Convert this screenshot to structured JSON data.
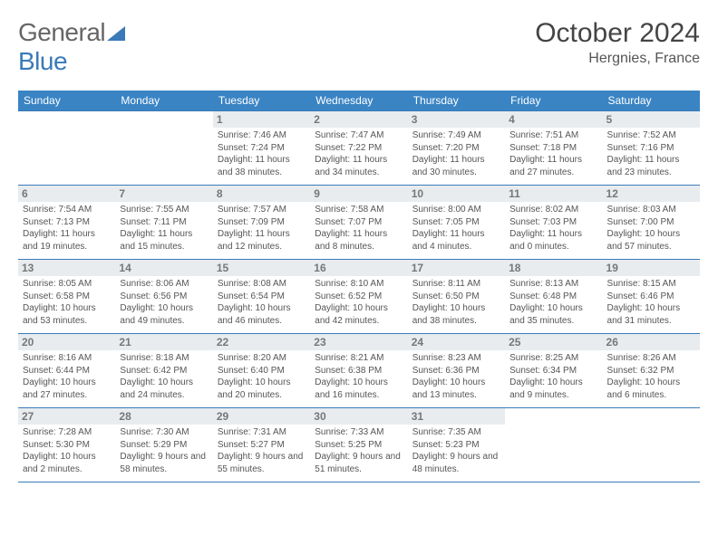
{
  "logo": {
    "textGray": "General",
    "textBlue": "Blue"
  },
  "title": "October 2024",
  "location": "Hergnies, France",
  "colors": {
    "headerBg": "#3a84c4",
    "border": "#3a7ab8",
    "dayBg": "#e8ecef"
  },
  "weekdays": [
    "Sunday",
    "Monday",
    "Tuesday",
    "Wednesday",
    "Thursday",
    "Friday",
    "Saturday"
  ],
  "startOffset": 2,
  "days": [
    {
      "n": 1,
      "sr": "7:46 AM",
      "ss": "7:24 PM",
      "dl": "11 hours and 38 minutes."
    },
    {
      "n": 2,
      "sr": "7:47 AM",
      "ss": "7:22 PM",
      "dl": "11 hours and 34 minutes."
    },
    {
      "n": 3,
      "sr": "7:49 AM",
      "ss": "7:20 PM",
      "dl": "11 hours and 30 minutes."
    },
    {
      "n": 4,
      "sr": "7:51 AM",
      "ss": "7:18 PM",
      "dl": "11 hours and 27 minutes."
    },
    {
      "n": 5,
      "sr": "7:52 AM",
      "ss": "7:16 PM",
      "dl": "11 hours and 23 minutes."
    },
    {
      "n": 6,
      "sr": "7:54 AM",
      "ss": "7:13 PM",
      "dl": "11 hours and 19 minutes."
    },
    {
      "n": 7,
      "sr": "7:55 AM",
      "ss": "7:11 PM",
      "dl": "11 hours and 15 minutes."
    },
    {
      "n": 8,
      "sr": "7:57 AM",
      "ss": "7:09 PM",
      "dl": "11 hours and 12 minutes."
    },
    {
      "n": 9,
      "sr": "7:58 AM",
      "ss": "7:07 PM",
      "dl": "11 hours and 8 minutes."
    },
    {
      "n": 10,
      "sr": "8:00 AM",
      "ss": "7:05 PM",
      "dl": "11 hours and 4 minutes."
    },
    {
      "n": 11,
      "sr": "8:02 AM",
      "ss": "7:03 PM",
      "dl": "11 hours and 0 minutes."
    },
    {
      "n": 12,
      "sr": "8:03 AM",
      "ss": "7:00 PM",
      "dl": "10 hours and 57 minutes."
    },
    {
      "n": 13,
      "sr": "8:05 AM",
      "ss": "6:58 PM",
      "dl": "10 hours and 53 minutes."
    },
    {
      "n": 14,
      "sr": "8:06 AM",
      "ss": "6:56 PM",
      "dl": "10 hours and 49 minutes."
    },
    {
      "n": 15,
      "sr": "8:08 AM",
      "ss": "6:54 PM",
      "dl": "10 hours and 46 minutes."
    },
    {
      "n": 16,
      "sr": "8:10 AM",
      "ss": "6:52 PM",
      "dl": "10 hours and 42 minutes."
    },
    {
      "n": 17,
      "sr": "8:11 AM",
      "ss": "6:50 PM",
      "dl": "10 hours and 38 minutes."
    },
    {
      "n": 18,
      "sr": "8:13 AM",
      "ss": "6:48 PM",
      "dl": "10 hours and 35 minutes."
    },
    {
      "n": 19,
      "sr": "8:15 AM",
      "ss": "6:46 PM",
      "dl": "10 hours and 31 minutes."
    },
    {
      "n": 20,
      "sr": "8:16 AM",
      "ss": "6:44 PM",
      "dl": "10 hours and 27 minutes."
    },
    {
      "n": 21,
      "sr": "8:18 AM",
      "ss": "6:42 PM",
      "dl": "10 hours and 24 minutes."
    },
    {
      "n": 22,
      "sr": "8:20 AM",
      "ss": "6:40 PM",
      "dl": "10 hours and 20 minutes."
    },
    {
      "n": 23,
      "sr": "8:21 AM",
      "ss": "6:38 PM",
      "dl": "10 hours and 16 minutes."
    },
    {
      "n": 24,
      "sr": "8:23 AM",
      "ss": "6:36 PM",
      "dl": "10 hours and 13 minutes."
    },
    {
      "n": 25,
      "sr": "8:25 AM",
      "ss": "6:34 PM",
      "dl": "10 hours and 9 minutes."
    },
    {
      "n": 26,
      "sr": "8:26 AM",
      "ss": "6:32 PM",
      "dl": "10 hours and 6 minutes."
    },
    {
      "n": 27,
      "sr": "7:28 AM",
      "ss": "5:30 PM",
      "dl": "10 hours and 2 minutes."
    },
    {
      "n": 28,
      "sr": "7:30 AM",
      "ss": "5:29 PM",
      "dl": "9 hours and 58 minutes."
    },
    {
      "n": 29,
      "sr": "7:31 AM",
      "ss": "5:27 PM",
      "dl": "9 hours and 55 minutes."
    },
    {
      "n": 30,
      "sr": "7:33 AM",
      "ss": "5:25 PM",
      "dl": "9 hours and 51 minutes."
    },
    {
      "n": 31,
      "sr": "7:35 AM",
      "ss": "5:23 PM",
      "dl": "9 hours and 48 minutes."
    }
  ]
}
